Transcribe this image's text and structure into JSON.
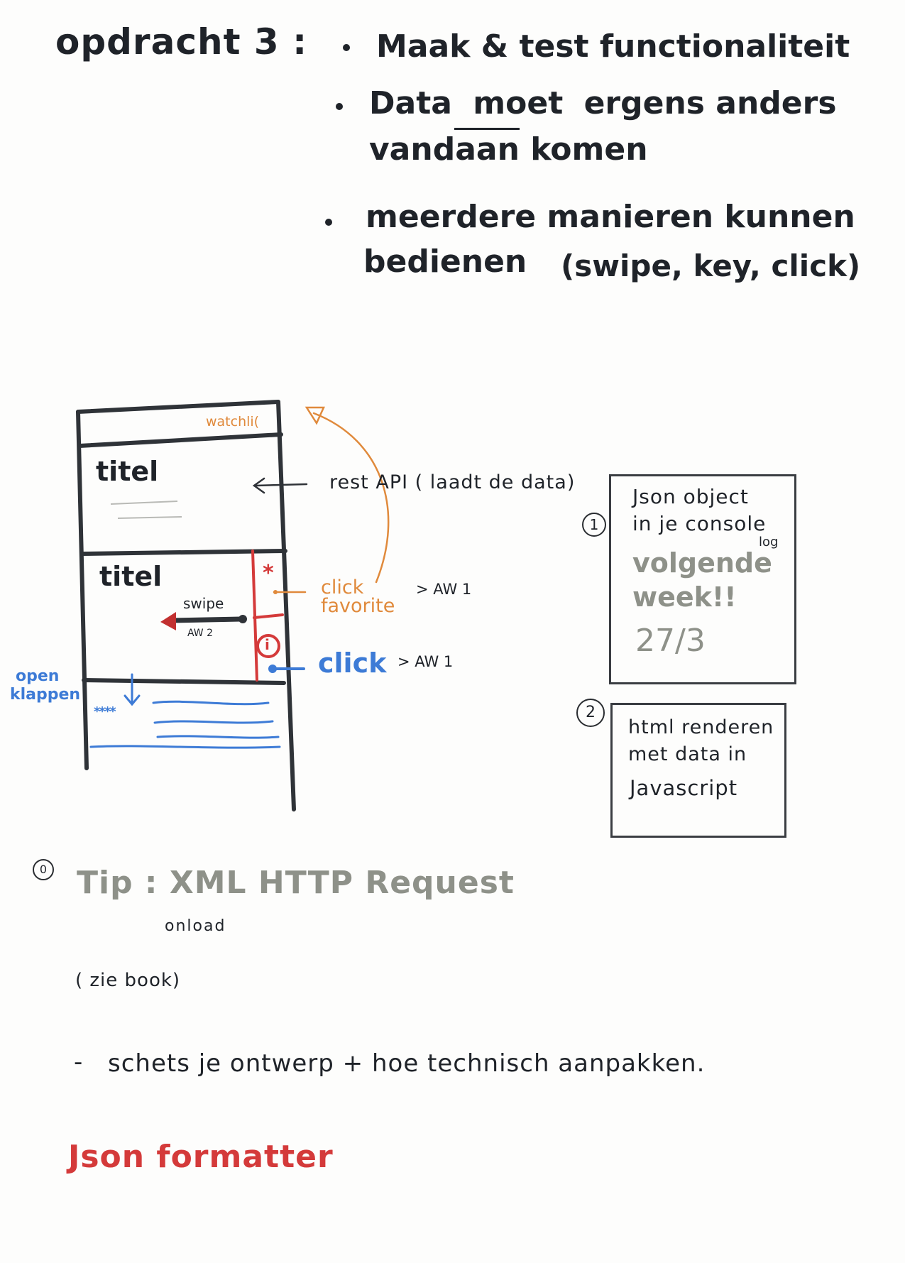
{
  "header": {
    "title": "opdracht 3 :",
    "bullets": [
      "Maak & test functionaliteit",
      "Data moet ergens anders vandaan komen",
      "meerdere manieren kunnen bedienen (swipe, key, click)"
    ],
    "bullet2_line1_pre": "Data",
    "bullet2_line1_moet": "moet",
    "bullet2_line1_post": "ergens anders",
    "bullet2_line2": "vandaan komen",
    "bullet3_line1": "meerdere manieren kunnen",
    "bullet3_line2": "bedienen",
    "bullet3_paren": "(swipe, key, click)"
  },
  "sketch": {
    "watchlist_label": "watchli(",
    "card1_title": "titel",
    "card2_title": "titel",
    "swipe_label": "swipe",
    "swipe_aw": "AW 2",
    "star_symbol": "*",
    "info_symbol": "i",
    "open_klappen_line1": "open",
    "open_klappen_line2": "klappen",
    "stars_row": "****",
    "rest_api_label": "rest API ( laadt de data)",
    "click_favorite_line1": "click",
    "click_favorite_line2": "favorite",
    "favorite_aw": "> AW 1",
    "click_blue": "click",
    "click_blue_aw": "> AW 1"
  },
  "boxes": {
    "box1_number": "1",
    "box1_line1": "Json object",
    "box1_line2": "in je console",
    "box1_log": "log",
    "box1_green1": "volgende",
    "box1_green2": "week!!",
    "box1_date": "27/3",
    "box2_number": "2",
    "box2_line1": "html renderen",
    "box2_line2": "met data in",
    "box2_line3": "Javascript"
  },
  "notes": {
    "tip_number": "0",
    "tip_text": "Tip : XML HTTP Request",
    "onload": "onload",
    "zie_boek": "( zie book)",
    "schets_dash": "-",
    "schets_text": "schets je ontwerp + hoe technisch aanpakken.",
    "json_formatter": "Json formatter"
  },
  "colors": {
    "ink": "#1f2329",
    "orange": "#e08a3c",
    "blue": "#3d7bd6",
    "red": "#d43a3a",
    "grey_green": "#8e9189"
  }
}
